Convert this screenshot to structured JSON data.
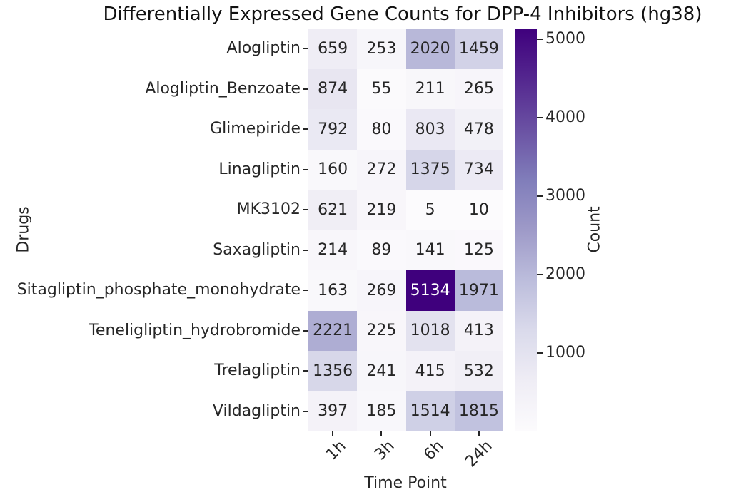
{
  "chart_data": {
    "type": "heatmap",
    "title": "Differentially Expressed Gene Counts for DPP-4 Inhibitors (hg38)",
    "xlabel": "Time Point",
    "ylabel": "Drugs",
    "columns": [
      "1h",
      "3h",
      "6h",
      "24h"
    ],
    "rows": [
      "Alogliptin",
      "Alogliptin_Benzoate",
      "Glimepiride",
      "Linagliptin",
      "MK3102",
      "Saxagliptin",
      "Sitagliptin_phosphate_monohydrate",
      "Teneligliptin_hydrobromide",
      "Trelagliptin",
      "Vildagliptin"
    ],
    "values": [
      [
        659,
        253,
        2020,
        1459
      ],
      [
        874,
        55,
        211,
        265
      ],
      [
        792,
        80,
        803,
        478
      ],
      [
        160,
        272,
        1375,
        734
      ],
      [
        621,
        219,
        5,
        10
      ],
      [
        214,
        89,
        141,
        125
      ],
      [
        163,
        269,
        5134,
        1971
      ],
      [
        2221,
        225,
        1018,
        413
      ],
      [
        1356,
        241,
        415,
        532
      ],
      [
        397,
        185,
        1514,
        1815
      ]
    ],
    "colorbar": {
      "label": "Count",
      "ticks": [
        1000,
        2000,
        3000,
        4000,
        5000
      ],
      "vmin": 5,
      "vmax": 5134,
      "colormap": "Purples",
      "colormap_stops": [
        "#fcfbfd",
        "#efedf5",
        "#dadaeb",
        "#bcbddc",
        "#9e9ac8",
        "#807dba",
        "#6a51a3",
        "#54278f",
        "#3f007d"
      ],
      "position": "right"
    },
    "grid": false,
    "annotated": true,
    "annotation_dark_text": "#262626",
    "annotation_light_text": "#ffffff",
    "background": "#ffffff"
  }
}
